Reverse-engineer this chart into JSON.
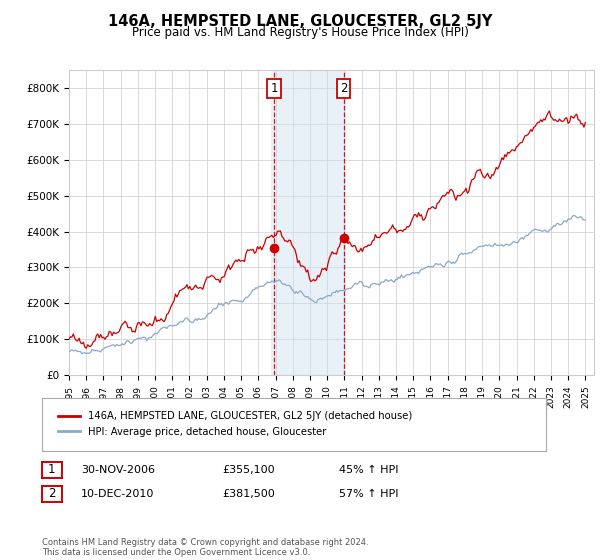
{
  "title": "146A, HEMPSTED LANE, GLOUCESTER, GL2 5JY",
  "subtitle": "Price paid vs. HM Land Registry's House Price Index (HPI)",
  "ylim": [
    0,
    850000
  ],
  "yticks": [
    0,
    100000,
    200000,
    300000,
    400000,
    500000,
    600000,
    700000,
    800000
  ],
  "ytick_labels": [
    "£0",
    "£100K",
    "£200K",
    "£300K",
    "£400K",
    "£500K",
    "£600K",
    "£700K",
    "£800K"
  ],
  "xlim_start": 1995.3,
  "xlim_end": 2025.5,
  "xticks": [
    1995,
    1996,
    1997,
    1998,
    1999,
    2000,
    2001,
    2002,
    2003,
    2004,
    2005,
    2006,
    2007,
    2008,
    2009,
    2010,
    2011,
    2012,
    2013,
    2014,
    2015,
    2016,
    2017,
    2018,
    2019,
    2020,
    2021,
    2022,
    2023,
    2024,
    2025
  ],
  "property_color": "#cc0000",
  "hpi_color": "#88aacc",
  "marker1_x": 2006.92,
  "marker1_y": 355100,
  "marker2_x": 2010.95,
  "marker2_y": 381500,
  "shade_x1": 2006.75,
  "shade_x2": 2011.1,
  "legend_property": "146A, HEMPSTED LANE, GLOUCESTER, GL2 5JY (detached house)",
  "legend_hpi": "HPI: Average price, detached house, Gloucester",
  "table_row1": [
    "1",
    "30-NOV-2006",
    "£355,100",
    "45% ↑ HPI"
  ],
  "table_row2": [
    "2",
    "10-DEC-2010",
    "£381,500",
    "57% ↑ HPI"
  ],
  "footer": "Contains HM Land Registry data © Crown copyright and database right 2024.\nThis data is licensed under the Open Government Licence v3.0.",
  "background_color": "#ffffff",
  "grid_color": "#cccccc"
}
